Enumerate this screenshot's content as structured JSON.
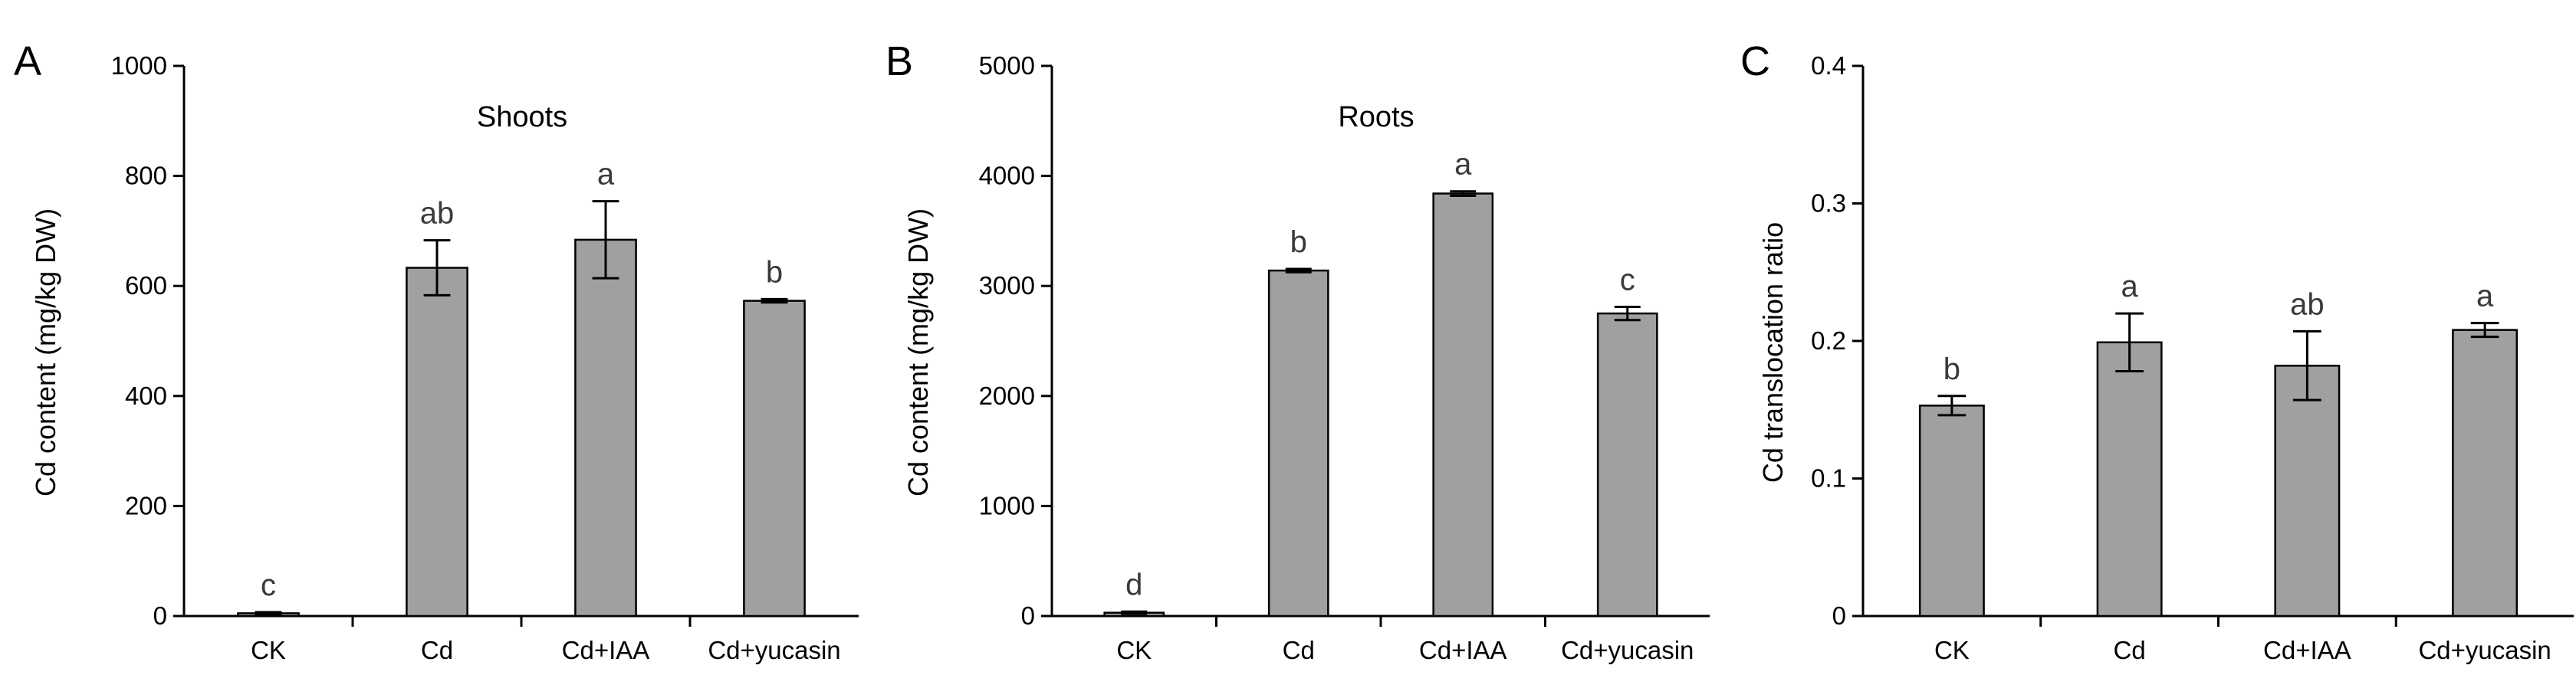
{
  "chart_data": [
    {
      "type": "bar",
      "panel": "A",
      "title": "Shoots",
      "xlabel": "",
      "ylabel": "Cd content (mg/kg DW)",
      "categories": [
        "CK",
        "Cd",
        "Cd+IAA",
        "Cd+yucasin"
      ],
      "values": [
        5,
        633,
        684,
        573
      ],
      "errors": [
        2,
        50,
        70,
        3
      ],
      "significance": [
        "c",
        "ab",
        "a",
        "b"
      ],
      "ylim": [
        0,
        1000
      ],
      "yticks": [
        "0",
        "200",
        "400",
        "600",
        "800",
        "1000"
      ],
      "grid": false,
      "legend": "none",
      "bar_color": "#a0a0a0"
    },
    {
      "type": "bar",
      "panel": "B",
      "title": "Roots",
      "xlabel": "",
      "ylabel": "Cd content (mg/kg DW)",
      "categories": [
        "CK",
        "Cd",
        "Cd+IAA",
        "Cd+yucasin"
      ],
      "values": [
        30,
        3140,
        3840,
        2750
      ],
      "errors": [
        10,
        15,
        20,
        60
      ],
      "significance": [
        "d",
        "b",
        "a",
        "c"
      ],
      "ylim": [
        0,
        5000
      ],
      "yticks": [
        "0",
        "1000",
        "2000",
        "3000",
        "4000",
        "5000"
      ],
      "grid": false,
      "legend": "none",
      "bar_color": "#a0a0a0"
    },
    {
      "type": "bar",
      "panel": "C",
      "title": "",
      "xlabel": "",
      "ylabel": "Cd translocation ratio",
      "categories": [
        "CK",
        "Cd",
        "Cd+IAA",
        "Cd+yucasin"
      ],
      "values": [
        0.153,
        0.199,
        0.182,
        0.208
      ],
      "errors": [
        0.007,
        0.021,
        0.025,
        0.005
      ],
      "significance": [
        "b",
        "a",
        "ab",
        "a"
      ],
      "ylim": [
        0,
        0.4
      ],
      "yticks": [
        "0",
        "0.1",
        "0.2",
        "0.3",
        "0.4"
      ],
      "grid": false,
      "legend": "none",
      "bar_color": "#a0a0a0"
    }
  ]
}
